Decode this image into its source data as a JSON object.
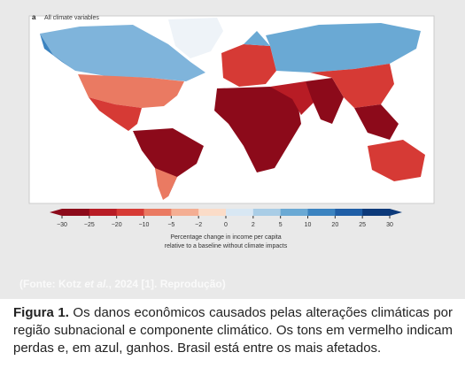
{
  "figure": {
    "panel_label": "a",
    "panel_title": "All climate variables",
    "colorbar": {
      "ticks": [
        "−30",
        "−25",
        "−20",
        "−10",
        "−5",
        "−2",
        "0",
        "2",
        "5",
        "10",
        "20",
        "25",
        "30"
      ],
      "colors": [
        "#8c0a1a",
        "#b81c25",
        "#d63a35",
        "#ea7a62",
        "#f4ae93",
        "#fbdcc8",
        "#d8e7f3",
        "#a9cde6",
        "#6aa9d4",
        "#3b83c0",
        "#1f5ea6",
        "#0d3a7a"
      ],
      "label_lines": [
        "Percentage change in income per capita",
        "relative to a baseline without climate impacts"
      ]
    }
  },
  "source": {
    "prefix": "(Fonte: Kotz ",
    "italic": "et al.",
    "suffix": ", 2024 [1]. Reprodução)"
  },
  "caption": {
    "label": "Figura 1.",
    "text": " Os danos econômicos causados pelas alterações climáticas por região subnacional e componente climático. Os tons em vermelho indicam perdas e, em azul, ganhos. Brasil está entre os mais afetados."
  }
}
